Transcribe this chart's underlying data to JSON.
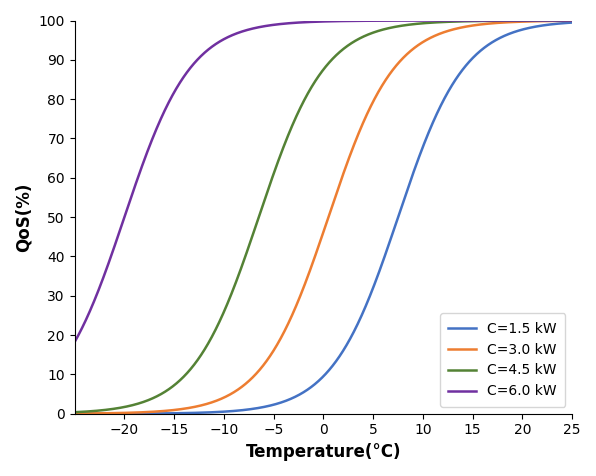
{
  "title": "",
  "xlabel": "Temperature(°C)",
  "ylabel": "QoS(%)",
  "xlim": [
    -25,
    25
  ],
  "ylim": [
    0,
    100
  ],
  "xticks": [
    -20,
    -15,
    -10,
    -5,
    0,
    5,
    10,
    15,
    20,
    25
  ],
  "yticks": [
    0,
    10,
    20,
    30,
    40,
    50,
    60,
    70,
    80,
    90,
    100
  ],
  "curves": [
    {
      "label": "C=1.5 kW",
      "color": "#4472C4",
      "k": 0.3,
      "x0": 7.5
    },
    {
      "label": "C=3.0 kW",
      "color": "#ED7D31",
      "k": 0.3,
      "x0": 0.5
    },
    {
      "label": "C=4.5 kW",
      "color": "#548235",
      "k": 0.3,
      "x0": -6.5
    },
    {
      "label": "C=6.0 kW",
      "color": "#7030A0",
      "k": 0.3,
      "x0": -20.0
    }
  ],
  "legend_loc": "lower right",
  "background_color": "#ffffff",
  "linewidth": 1.8
}
